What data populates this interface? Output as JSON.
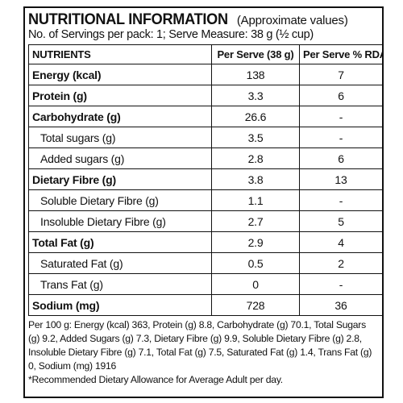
{
  "panel": {
    "title": "NUTRITIONAL INFORMATION",
    "subtitle": "(Approximate values)",
    "servings": "No. of Servings per pack: 1; Serve Measure: 38 g (½ cup)"
  },
  "table": {
    "headers": [
      "NUTRIENTS",
      "Per Serve (38 g)",
      "Per Serve % RDA*"
    ],
    "rows": [
      {
        "label": "Energy (kcal)",
        "per_serve": "138",
        "rda": "7"
      },
      {
        "label": "Protein (g)",
        "per_serve": "3.3",
        "rda": "6"
      },
      {
        "label": "Carbohydrate (g)",
        "per_serve": "26.6",
        "rda": "-"
      },
      {
        "label": "Total sugars (g)",
        "per_serve": "3.5",
        "rda": "-"
      },
      {
        "label": "Added sugars (g)",
        "per_serve": "2.8",
        "rda": "6"
      },
      {
        "label": "Dietary Fibre (g)",
        "per_serve": "3.8",
        "rda": "13"
      },
      {
        "label": "Soluble Dietary Fibre (g)",
        "per_serve": "1.1",
        "rda": "-"
      },
      {
        "label": "Insoluble Dietary Fibre (g)",
        "per_serve": "2.7",
        "rda": "5"
      },
      {
        "label": "Total Fat (g)",
        "per_serve": "2.9",
        "rda": "4"
      },
      {
        "label": "Saturated Fat (g)",
        "per_serve": "0.5",
        "rda": "2"
      },
      {
        "label": "Trans Fat (g)",
        "per_serve": "0",
        "rda": "-"
      },
      {
        "label": "Sodium (mg)",
        "per_serve": "728",
        "rda": "36"
      }
    ]
  },
  "footnote": {
    "per100": "Per 100 g: Energy (kcal) 363, Protein (g) 8.8, Carbohydrate (g) 70.1, Total Sugars (g) 9.2, Added Sugars (g) 7.3, Dietary Fibre (g) 9.9, Soluble Dietary Fibre (g) 2.8, Insoluble Dietary Fibre (g) 7.1, Total Fat (g) 7.5, Saturated Fat (g) 1.4, Trans Fat (g) 0, Sodium (mg) 1916",
    "rda_note": "*Recommended Dietary Allowance for Average Adult per day."
  }
}
